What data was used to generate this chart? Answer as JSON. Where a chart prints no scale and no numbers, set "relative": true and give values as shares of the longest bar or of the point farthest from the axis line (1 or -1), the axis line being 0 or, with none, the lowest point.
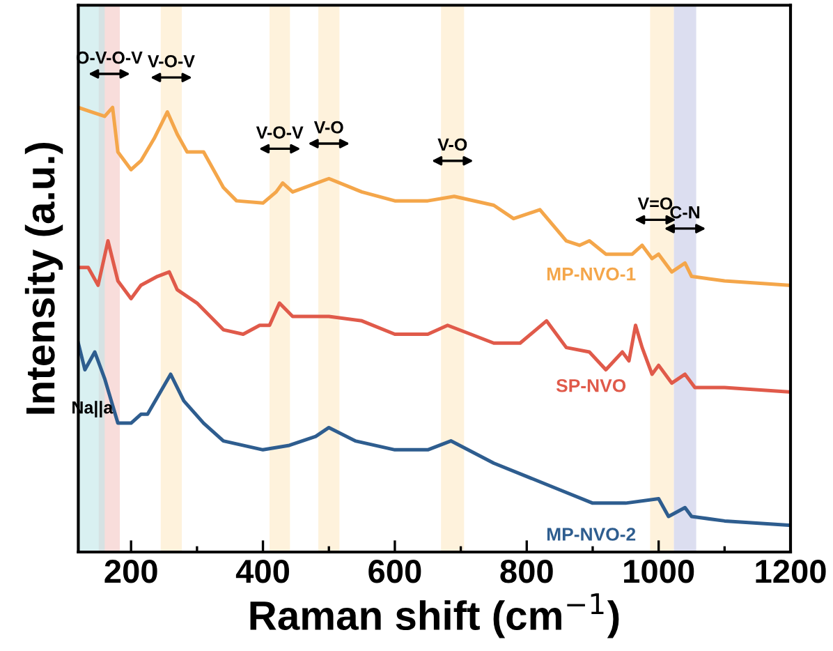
{
  "chart_data": {
    "type": "line",
    "relative": true,
    "xlabel": "Raman shift (cm$^{−1}$)",
    "ylabel": "Intensity (a.u.)",
    "xlim": [
      120,
      1200
    ],
    "xticks": [
      200,
      400,
      600,
      800,
      1000,
      1200
    ],
    "tick_labels": "x",
    "grid": false,
    "legend": false,
    "series": [
      {
        "name": "MP-NVO-1",
        "color": "#f4a64a",
        "x": [
          120,
          140,
          160,
          172,
          180,
          200,
          215,
          235,
          255,
          270,
          285,
          310,
          340,
          360,
          400,
          420,
          430,
          445,
          500,
          550,
          600,
          650,
          690,
          750,
          780,
          820,
          860,
          880,
          895,
          920,
          960,
          975,
          990,
          1000,
          1020,
          1040,
          1050,
          1100,
          1200
        ],
        "values": [
          1.0,
          0.99,
          0.98,
          1.0,
          0.9,
          0.86,
          0.88,
          0.93,
          0.99,
          0.94,
          0.9,
          0.9,
          0.82,
          0.79,
          0.785,
          0.81,
          0.83,
          0.81,
          0.84,
          0.81,
          0.79,
          0.79,
          0.8,
          0.78,
          0.75,
          0.77,
          0.7,
          0.69,
          0.7,
          0.67,
          0.67,
          0.69,
          0.66,
          0.67,
          0.63,
          0.65,
          0.62,
          0.61,
          0.6
        ]
      },
      {
        "name": "SP-NVO",
        "color": "#e05a4a",
        "x": [
          120,
          135,
          150,
          165,
          180,
          200,
          215,
          240,
          258,
          270,
          300,
          340,
          370,
          395,
          410,
          425,
          445,
          500,
          550,
          600,
          650,
          680,
          750,
          790,
          830,
          860,
          895,
          920,
          945,
          955,
          965,
          975,
          990,
          1000,
          1020,
          1040,
          1055,
          1100,
          1200
        ],
        "values": [
          0.64,
          0.64,
          0.6,
          0.7,
          0.61,
          0.57,
          0.6,
          0.62,
          0.63,
          0.59,
          0.56,
          0.5,
          0.49,
          0.51,
          0.51,
          0.56,
          0.53,
          0.53,
          0.52,
          0.49,
          0.49,
          0.51,
          0.47,
          0.47,
          0.52,
          0.46,
          0.45,
          0.41,
          0.45,
          0.43,
          0.51,
          0.46,
          0.4,
          0.42,
          0.38,
          0.4,
          0.37,
          0.37,
          0.36
        ]
      },
      {
        "name": "MP-NVO-2",
        "color": "#2e5d8f",
        "x": [
          120,
          130,
          145,
          160,
          180,
          200,
          215,
          225,
          260,
          280,
          310,
          340,
          400,
          440,
          480,
          500,
          540,
          600,
          650,
          685,
          750,
          800,
          850,
          900,
          950,
          1000,
          1015,
          1040,
          1050,
          1100,
          1200
        ],
        "values": [
          0.47,
          0.41,
          0.45,
          0.39,
          0.29,
          0.29,
          0.31,
          0.31,
          0.4,
          0.34,
          0.29,
          0.25,
          0.23,
          0.24,
          0.26,
          0.28,
          0.25,
          0.23,
          0.23,
          0.25,
          0.2,
          0.17,
          0.14,
          0.11,
          0.11,
          0.12,
          0.08,
          0.1,
          0.08,
          0.07,
          0.06
        ]
      }
    ],
    "bands": [
      {
        "axis": "x",
        "from": 122,
        "to": 160,
        "label": "Na||a",
        "color": "#bfe6e8"
      },
      {
        "axis": "x",
        "from": 151,
        "to": 183,
        "label": "O-V-O-V",
        "color": "#f4c7c3"
      },
      {
        "axis": "x",
        "from": 245,
        "to": 277,
        "label": "V-O-V",
        "color": "#fde9c4"
      },
      {
        "axis": "x",
        "from": 410,
        "to": 441,
        "label": "V-O-V",
        "color": "#fde9c4"
      },
      {
        "axis": "x",
        "from": 484,
        "to": 516,
        "label": "V-O",
        "color": "#fde9c4"
      },
      {
        "axis": "x",
        "from": 670,
        "to": 705,
        "label": "V-O",
        "color": "#fde9c4"
      },
      {
        "axis": "x",
        "from": 987,
        "to": 1023,
        "label": "V=O",
        "color": "#fde9c4"
      },
      {
        "axis": "x",
        "from": 1023,
        "to": 1057,
        "label": "C-N",
        "color": "#c5c8e6"
      }
    ]
  }
}
